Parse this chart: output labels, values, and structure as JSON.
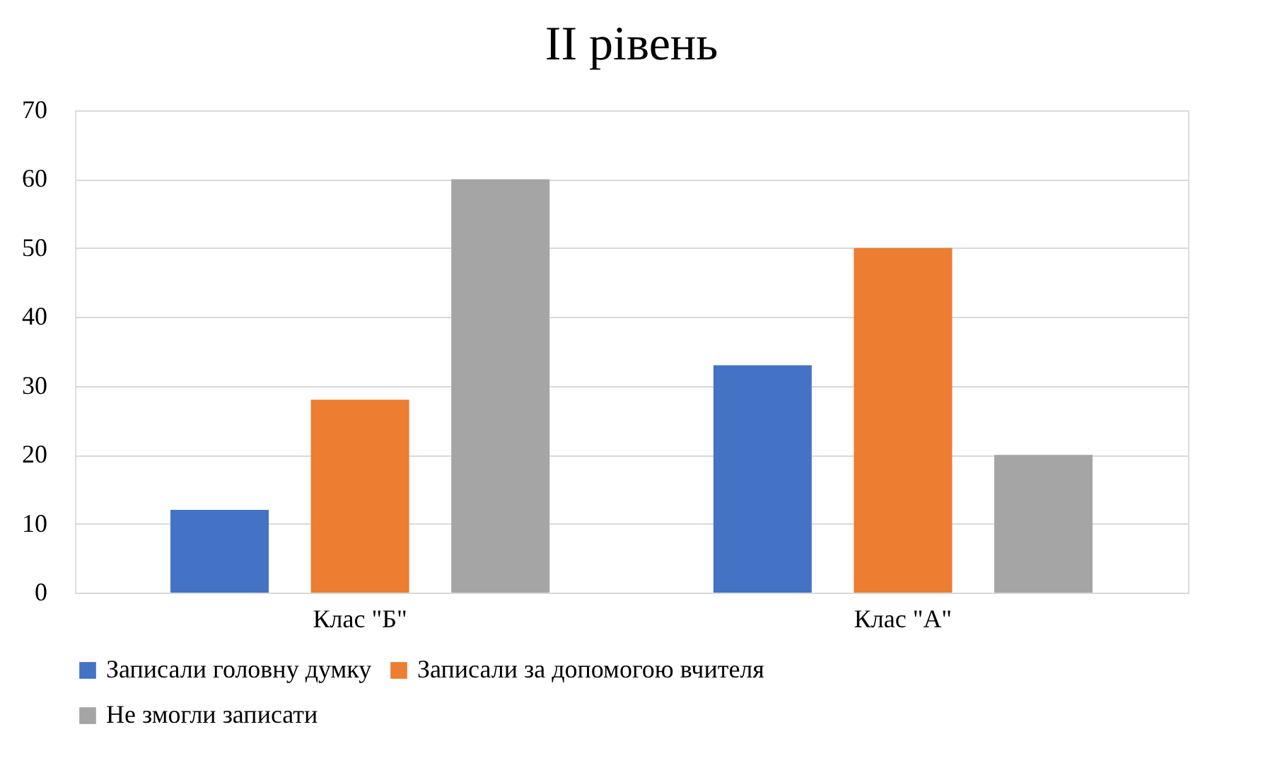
{
  "chart_data": {
    "type": "bar",
    "title": "II рівень",
    "categories": [
      "Клас \"Б\"",
      "Клас \"А\""
    ],
    "series": [
      {
        "name": "Записали головну думку",
        "color": "#4472c4",
        "values": [
          12,
          33
        ]
      },
      {
        "name": "Записали за допомогою вчителя",
        "color": "#ed7d31",
        "values": [
          28,
          50
        ]
      },
      {
        "name": "Не змогли записати",
        "color": "#a5a5a5",
        "values": [
          60,
          20
        ]
      }
    ],
    "ylim": [
      0,
      70
    ],
    "yticks": [
      0,
      10,
      20,
      30,
      40,
      50,
      60,
      70
    ],
    "grid": "y",
    "legend": "bottom"
  }
}
